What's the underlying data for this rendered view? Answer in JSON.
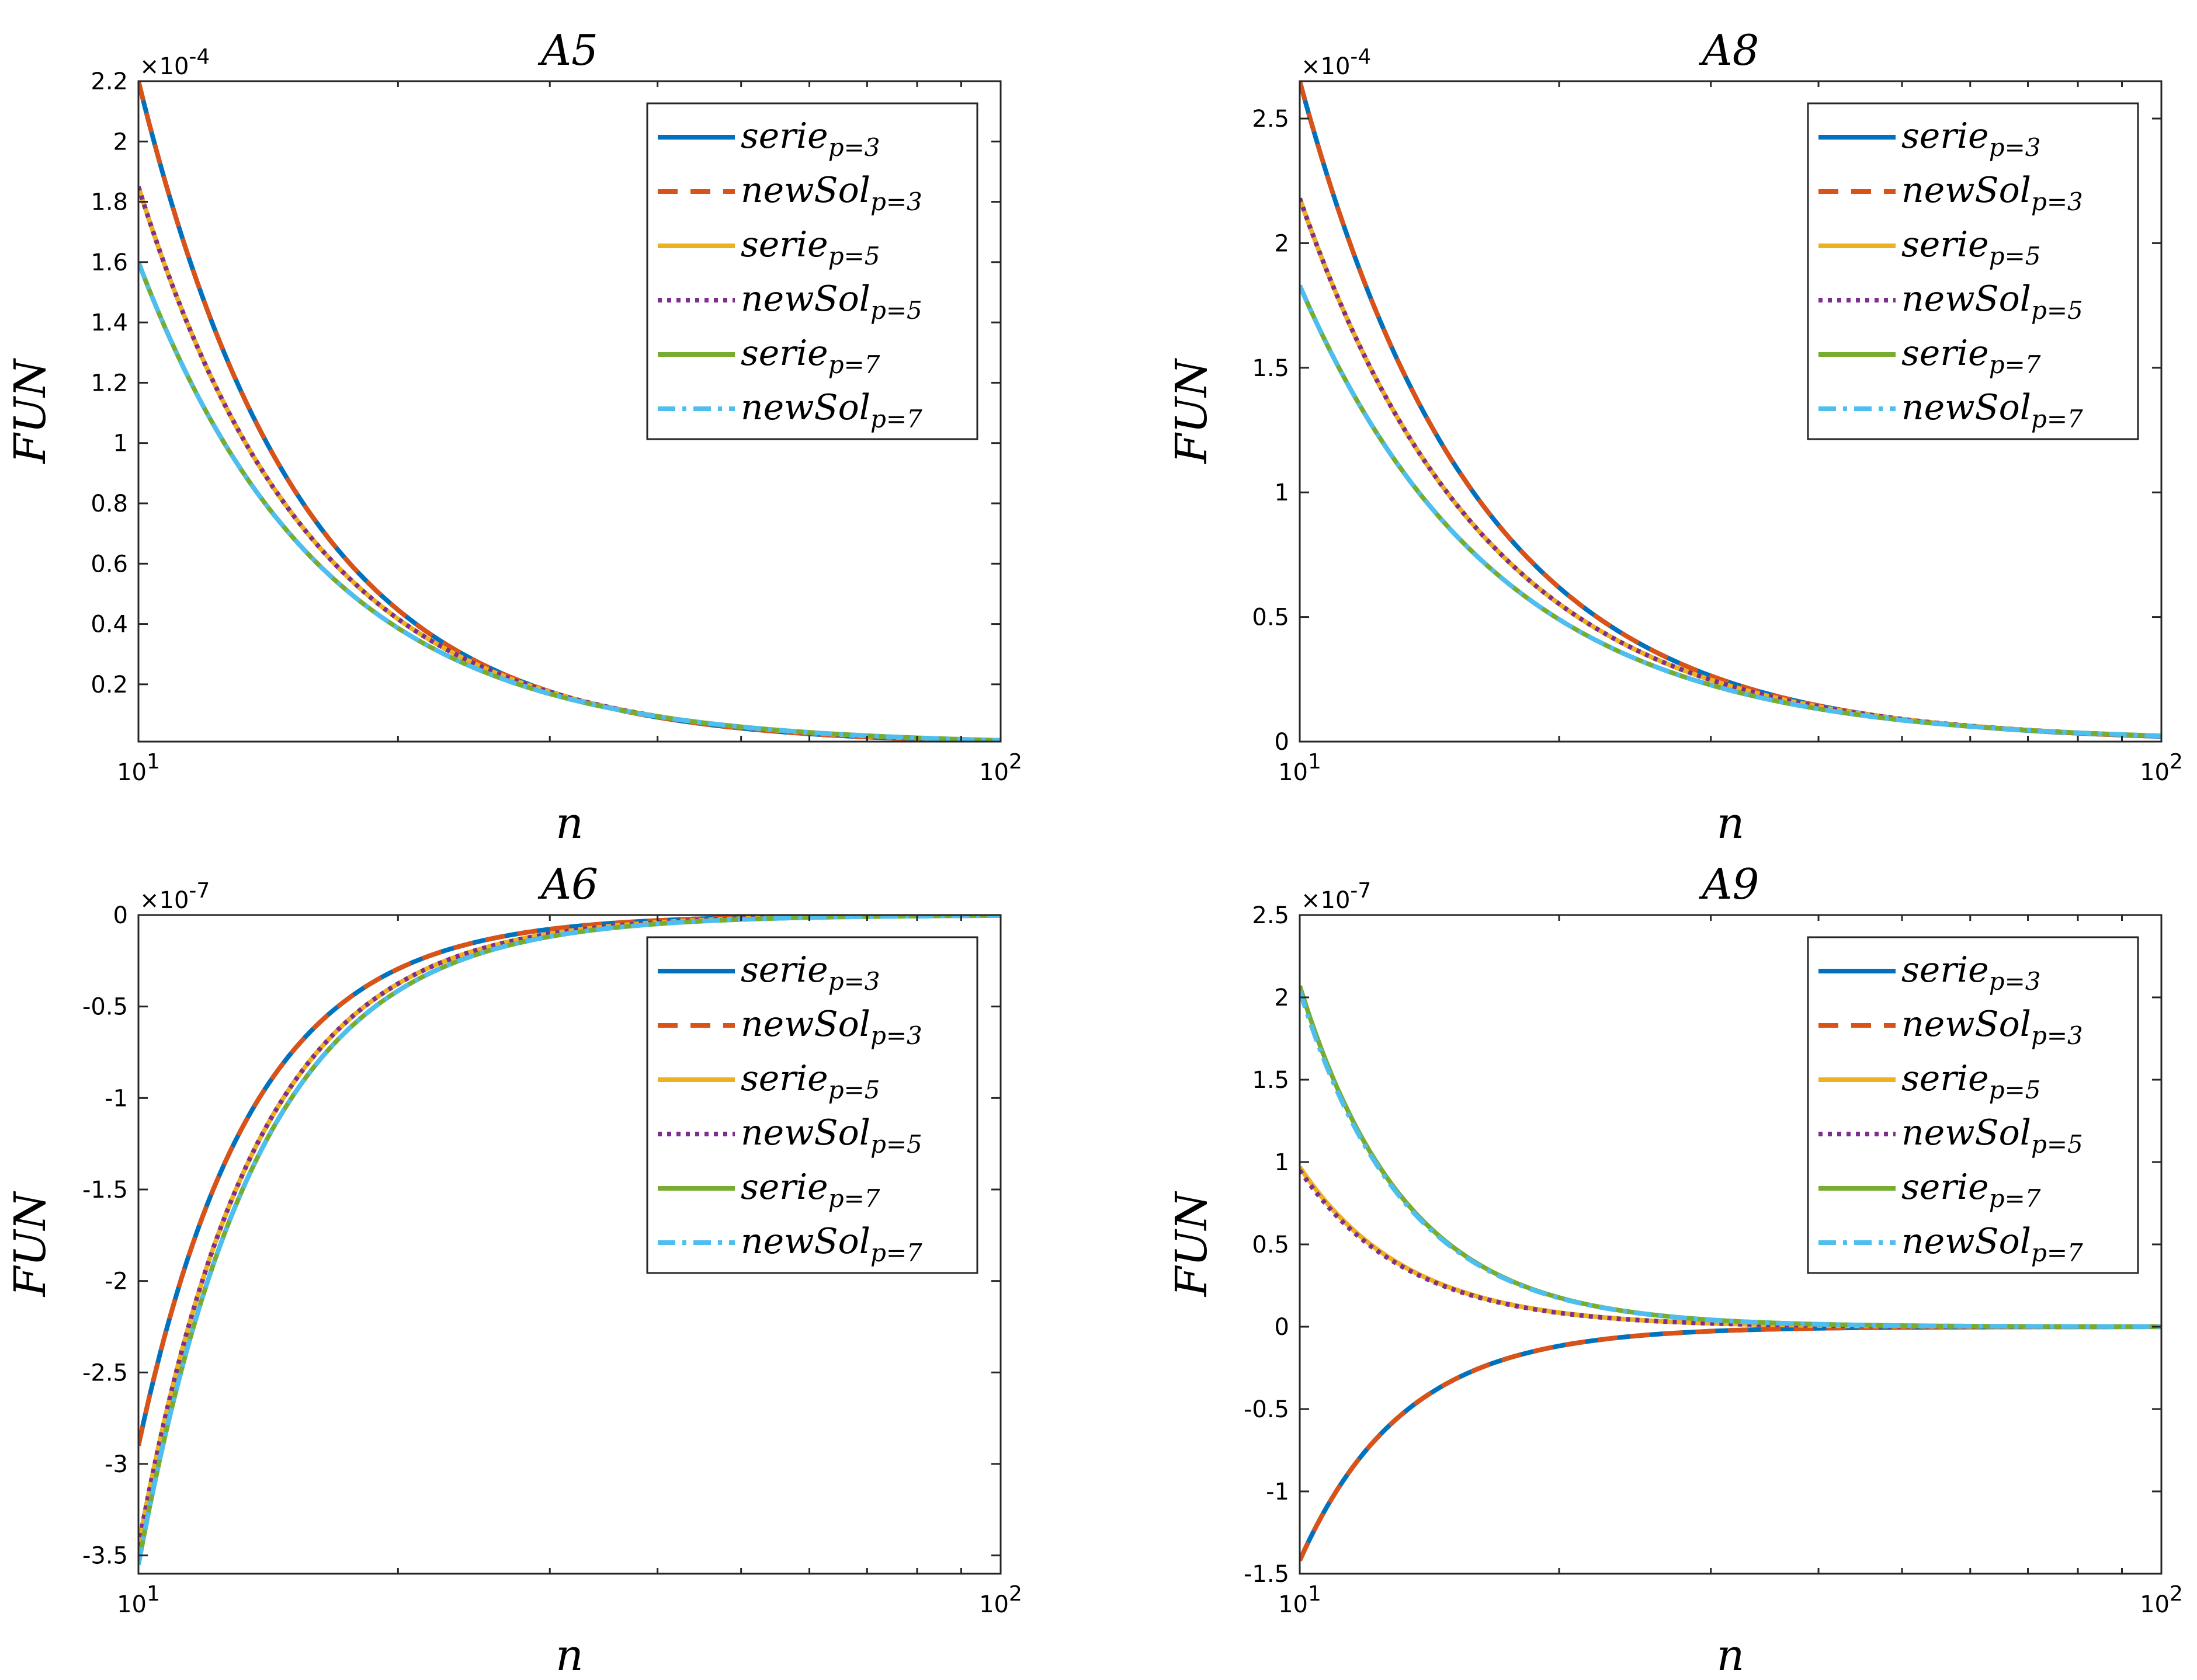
{
  "legend_position": "top-right",
  "legend_entries": [
    {
      "base": "serie",
      "sub": "p=3"
    },
    {
      "base": "newSol",
      "sub": "p=3"
    },
    {
      "base": "serie",
      "sub": "p=5"
    },
    {
      "base": "newSol",
      "sub": "p=5"
    },
    {
      "base": "serie",
      "sub": "p=7"
    },
    {
      "base": "newSol",
      "sub": "p=7"
    }
  ],
  "series_styles": [
    {
      "name": "serie_p=3",
      "color": "#0072BD",
      "dash": "solid"
    },
    {
      "name": "newSol_p=3",
      "color": "#D95319",
      "dash": "dashed"
    },
    {
      "name": "serie_p=5",
      "color": "#EDB120",
      "dash": "solid"
    },
    {
      "name": "newSol_p=5",
      "color": "#7E2F8E",
      "dash": "dotted"
    },
    {
      "name": "serie_p=7",
      "color": "#77AC30",
      "dash": "solid"
    },
    {
      "name": "newSol_p=7",
      "color": "#4DBEEE",
      "dash": "dashdot"
    }
  ],
  "chart_data": [
    {
      "type": "line",
      "title": "A5",
      "xlabel": "n",
      "ylabel": "FUN",
      "xscale": "log",
      "xlim": [
        10,
        100
      ],
      "xticks": [
        {
          "v": 10,
          "base": "10",
          "exp": "1"
        },
        {
          "v": 100,
          "base": "10",
          "exp": "2"
        }
      ],
      "ylim": [
        0.01,
        2.2
      ],
      "yticks": [
        {
          "v": 0.2,
          "label": "0.2"
        },
        {
          "v": 0.4,
          "label": "0.4"
        },
        {
          "v": 0.6,
          "label": "0.6"
        },
        {
          "v": 0.8,
          "label": "0.8"
        },
        {
          "v": 1,
          "label": "1"
        },
        {
          "v": 1.2,
          "label": "1.2"
        },
        {
          "v": 1.4,
          "label": "1.4"
        },
        {
          "v": 1.6,
          "label": "1.6"
        },
        {
          "v": 1.8,
          "label": "1.8"
        },
        {
          "v": 2,
          "label": "2"
        },
        {
          "v": 2.2,
          "label": "2.2"
        }
      ],
      "y_multiplier": {
        "base": "×10",
        "exp": "-4"
      },
      "series": [
        {
          "name": "serie_p=3",
          "params": {
            "c": 2.2,
            "q": 2.3
          }
        },
        {
          "name": "newSol_p=3",
          "params": {
            "c": 2.2,
            "q": 2.3
          }
        },
        {
          "name": "serie_p=5",
          "params": {
            "c": 1.85,
            "q": 2.15
          }
        },
        {
          "name": "newSol_p=5",
          "params": {
            "c": 1.85,
            "q": 2.15
          }
        },
        {
          "name": "serie_p=7",
          "params": {
            "c": 1.6,
            "q": 2.05
          }
        },
        {
          "name": "newSol_p=7",
          "params": {
            "c": 1.6,
            "q": 2.05
          }
        }
      ]
    },
    {
      "type": "line",
      "title": "A8",
      "xlabel": "n",
      "ylabel": "FUN",
      "xscale": "log",
      "xlim": [
        10,
        100
      ],
      "xticks": [
        {
          "v": 10,
          "base": "10",
          "exp": "1"
        },
        {
          "v": 100,
          "base": "10",
          "exp": "2"
        }
      ],
      "ylim": [
        0,
        2.65
      ],
      "yticks": [
        {
          "v": 0,
          "label": "0"
        },
        {
          "v": 0.5,
          "label": "0.5"
        },
        {
          "v": 1,
          "label": "1"
        },
        {
          "v": 1.5,
          "label": "1.5"
        },
        {
          "v": 2,
          "label": "2"
        },
        {
          "v": 2.5,
          "label": "2.5"
        }
      ],
      "y_multiplier": {
        "base": "×10",
        "exp": "-4"
      },
      "series": [
        {
          "name": "serie_p=3",
          "params": {
            "c": 2.65,
            "q": 2.1
          }
        },
        {
          "name": "newSol_p=3",
          "params": {
            "c": 2.65,
            "q": 2.1
          }
        },
        {
          "name": "serie_p=5",
          "params": {
            "c": 2.18,
            "q": 1.98
          }
        },
        {
          "name": "newSol_p=5",
          "params": {
            "c": 2.18,
            "q": 1.98
          }
        },
        {
          "name": "serie_p=7",
          "params": {
            "c": 1.83,
            "q": 1.9
          }
        },
        {
          "name": "newSol_p=7",
          "params": {
            "c": 1.83,
            "q": 1.9
          }
        }
      ]
    },
    {
      "type": "line",
      "title": "A6",
      "xlabel": "n",
      "ylabel": "FUN",
      "xscale": "log",
      "xlim": [
        10,
        100
      ],
      "xticks": [
        {
          "v": 10,
          "base": "10",
          "exp": "1"
        },
        {
          "v": 100,
          "base": "10",
          "exp": "2"
        }
      ],
      "ylim": [
        -3.6,
        0
      ],
      "yticks": [
        {
          "v": -3.5,
          "label": "-3.5"
        },
        {
          "v": -3,
          "label": "-3"
        },
        {
          "v": -2.5,
          "label": "-2.5"
        },
        {
          "v": -2,
          "label": "-2"
        },
        {
          "v": -1.5,
          "label": "-1.5"
        },
        {
          "v": -1,
          "label": "-1"
        },
        {
          "v": -0.5,
          "label": "-0.5"
        },
        {
          "v": 0,
          "label": "0"
        }
      ],
      "y_multiplier": {
        "base": "×10",
        "exp": "-7"
      },
      "series": [
        {
          "name": "serie_p=3",
          "params": {
            "c": -2.9,
            "q": 3.3
          }
        },
        {
          "name": "newSol_p=3",
          "params": {
            "c": -2.9,
            "q": 3.3
          }
        },
        {
          "name": "serie_p=5",
          "params": {
            "c": -3.45,
            "q": 3.2
          }
        },
        {
          "name": "newSol_p=5",
          "params": {
            "c": -3.45,
            "q": 3.2
          }
        },
        {
          "name": "serie_p=7",
          "params": {
            "c": -3.55,
            "q": 3.1
          }
        },
        {
          "name": "newSol_p=7",
          "params": {
            "c": -3.55,
            "q": 3.1
          }
        }
      ]
    },
    {
      "type": "line",
      "title": "A9",
      "xlabel": "n",
      "ylabel": "FUN",
      "xscale": "log",
      "xlim": [
        10,
        100
      ],
      "xticks": [
        {
          "v": 10,
          "base": "10",
          "exp": "1"
        },
        {
          "v": 100,
          "base": "10",
          "exp": "2"
        }
      ],
      "ylim": [
        -1.5,
        2.5
      ],
      "yticks": [
        {
          "v": -1.5,
          "label": "-1.5"
        },
        {
          "v": -1,
          "label": "-1"
        },
        {
          "v": -0.5,
          "label": "-0.5"
        },
        {
          "v": 0,
          "label": "0"
        },
        {
          "v": 0.5,
          "label": "0.5"
        },
        {
          "v": 1,
          "label": "1"
        },
        {
          "v": 1.5,
          "label": "1.5"
        },
        {
          "v": 2,
          "label": "2"
        },
        {
          "v": 2.5,
          "label": "2.5"
        }
      ],
      "y_multiplier": {
        "base": "×10",
        "exp": "-7"
      },
      "series": [
        {
          "name": "serie_p=3",
          "params": {
            "c": -1.42,
            "q": 3.6
          }
        },
        {
          "name": "newSol_p=3",
          "params": {
            "c": -1.42,
            "q": 3.6
          }
        },
        {
          "name": "serie_p=5",
          "params": {
            "c": 0.97,
            "q": 3.5
          }
        },
        {
          "name": "newSol_p=5",
          "params": {
            "c": 0.95,
            "q": 3.5
          }
        },
        {
          "name": "serie_p=7",
          "params": {
            "c": 2.07,
            "q": 3.55
          }
        },
        {
          "name": "newSol_p=7",
          "params": {
            "c": 2.04,
            "q": 3.55
          }
        }
      ]
    }
  ]
}
